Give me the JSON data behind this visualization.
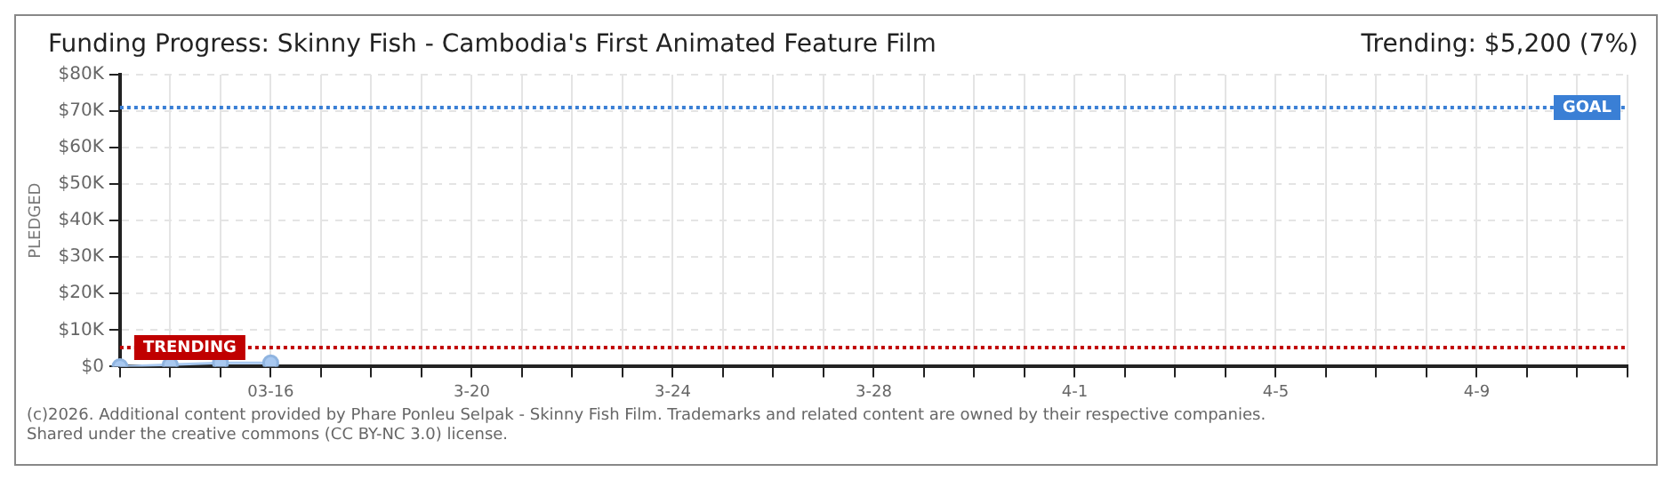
{
  "chart_data": {
    "type": "line",
    "title": "Funding Progress: Skinny Fish - Cambodia's First Animated Feature Film",
    "subtitle": "Trending: $5,200 (7%)",
    "ylabel": "PLEDGED",
    "categories": [
      null,
      null,
      null,
      "03-16",
      null,
      null,
      null,
      "3-20",
      null,
      null,
      null,
      "3-24",
      null,
      null,
      null,
      "3-28",
      null,
      null,
      null,
      "4-1",
      null,
      null,
      null,
      "4-5",
      null,
      null,
      null,
      "4-9",
      null,
      null,
      null
    ],
    "series": [
      {
        "color": "#a8c8f0",
        "values": [
          0,
          500,
          1000,
          1000,
          null,
          null,
          null,
          null,
          null,
          null,
          null,
          null,
          null,
          null,
          null,
          null,
          null,
          null,
          null,
          null,
          null,
          null,
          null,
          null,
          null,
          null,
          null,
          null,
          null,
          null,
          null
        ]
      }
    ],
    "ylim": [
      0,
      80000
    ],
    "yticks": [
      {
        "value": 0,
        "label": "$0"
      },
      {
        "value": 10000,
        "label": "$10K"
      },
      {
        "value": 20000,
        "label": "$20K"
      },
      {
        "value": 30000,
        "label": "$30K"
      },
      {
        "value": 40000,
        "label": "$40K"
      },
      {
        "value": 50000,
        "label": "$50K"
      },
      {
        "value": 60000,
        "label": "$60K"
      },
      {
        "value": 70000,
        "label": "$70K"
      },
      {
        "value": 80000,
        "label": "$80K"
      }
    ],
    "ref_lines": [
      {
        "axis": "y",
        "value": 71000,
        "label": "GOAL",
        "color": "#3a7fd5",
        "line_style": "dotted"
      },
      {
        "axis": "y",
        "value": 5200,
        "label": "TRENDING",
        "color": "#c00000",
        "line_style": "dotted"
      }
    ],
    "grid": true,
    "marker": "circle",
    "line_style": "solid",
    "annotations": [
      "(c)2026. Additional content provided by Phare Ponleu Selpak - Skinny Fish Film. Trademarks and related content are owned by their respective companies.",
      "Shared under the creative commons (CC BY-NC 3.0) license."
    ]
  }
}
